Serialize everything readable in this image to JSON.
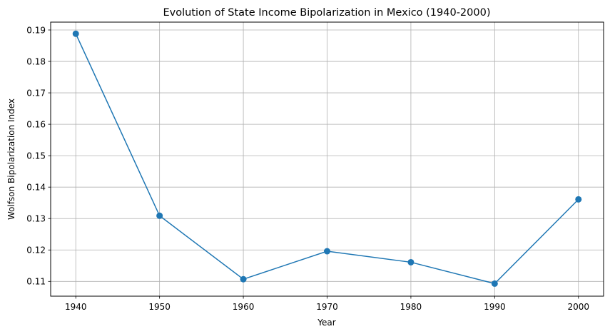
{
  "chart_data": {
    "type": "line",
    "title": "Evolution of State Income Bipolarization in Mexico (1940-2000)",
    "xlabel": "Year",
    "ylabel": "Wolfson Bipolarization Index",
    "x": [
      1940,
      1950,
      1960,
      1970,
      1980,
      1990,
      2000
    ],
    "series": [
      {
        "name": "Wolfson Bipolarization Index",
        "values": [
          0.1888,
          0.1309,
          0.1107,
          0.1196,
          0.1161,
          0.1093,
          0.1361
        ]
      }
    ],
    "xlim": [
      1937,
      2003
    ],
    "ylim": [
      0.1053,
      0.1925
    ],
    "xticks": [
      1940,
      1950,
      1960,
      1970,
      1980,
      1990,
      2000
    ],
    "yticks": [
      0.11,
      0.12,
      0.13,
      0.14,
      0.15,
      0.16,
      0.17,
      0.18,
      0.19
    ],
    "grid": true,
    "marker": "circle",
    "color": "#1f77b4"
  }
}
